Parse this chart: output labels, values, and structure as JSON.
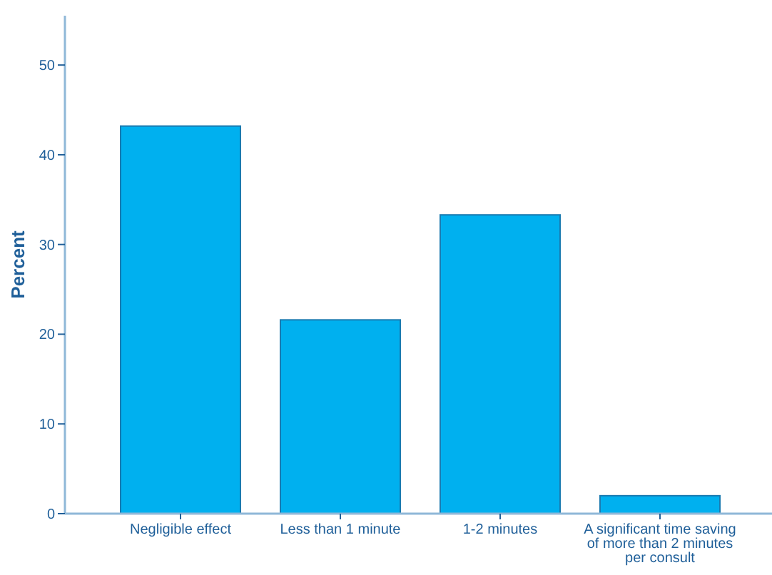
{
  "chart_data": {
    "type": "bar",
    "ylabel": "Percent",
    "categories": [
      "Negligible effect",
      "Less than 1 minute",
      "1-2 minutes",
      "A significant time saving of more than 2 minutes per consult"
    ],
    "values": [
      43.2,
      21.6,
      33.3,
      2.0
    ],
    "color": "#00b0ef",
    "ylim": [
      0,
      55.5
    ],
    "yticks": [
      0,
      10,
      20,
      30,
      40,
      50
    ],
    "grid": false
  }
}
